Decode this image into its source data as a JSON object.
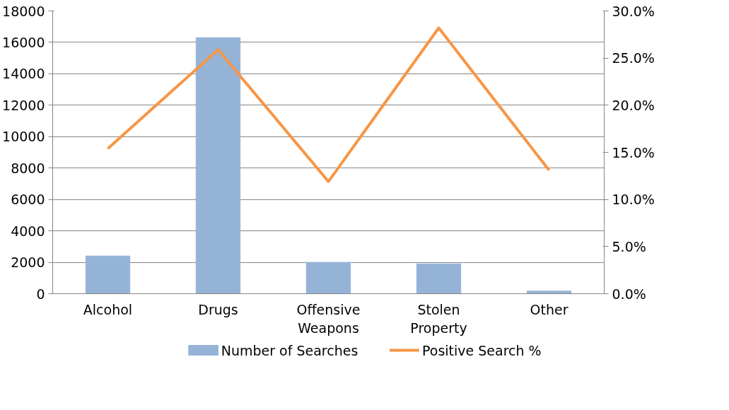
{
  "chart_data": {
    "type": "bar",
    "categories": [
      "Alcohol",
      "Drugs",
      "Offensive\nWeapons",
      "Stolen\nProperty",
      "Other"
    ],
    "series": [
      {
        "name": "Number of Searches",
        "type": "bar",
        "color": "#95b3d7",
        "values": [
          2400,
          16300,
          2000,
          1900,
          170
        ]
      },
      {
        "name": "Positive Search %",
        "type": "line",
        "axis": "y2",
        "color": "#f79646",
        "values": [
          15.4,
          25.9,
          11.9,
          28.2,
          13.1
        ]
      }
    ],
    "ylim": [
      0,
      18000
    ],
    "yticks": [
      0,
      2000,
      4000,
      6000,
      8000,
      10000,
      12000,
      14000,
      16000,
      18000
    ],
    "y2lim": [
      0,
      30
    ],
    "y2ticks": [
      {
        "value": 0,
        "label": "0.0%"
      },
      {
        "value": 5,
        "label": "5.0%"
      },
      {
        "value": 10,
        "label": "10.0%"
      },
      {
        "value": 15,
        "label": "15.0%"
      },
      {
        "value": 20,
        "label": "20.0%"
      },
      {
        "value": 25,
        "label": "25.0%"
      },
      {
        "value": 30,
        "label": "30.0%"
      }
    ],
    "grid": "y",
    "legend": "bottom",
    "marker": "none",
    "line_style": "solid"
  }
}
